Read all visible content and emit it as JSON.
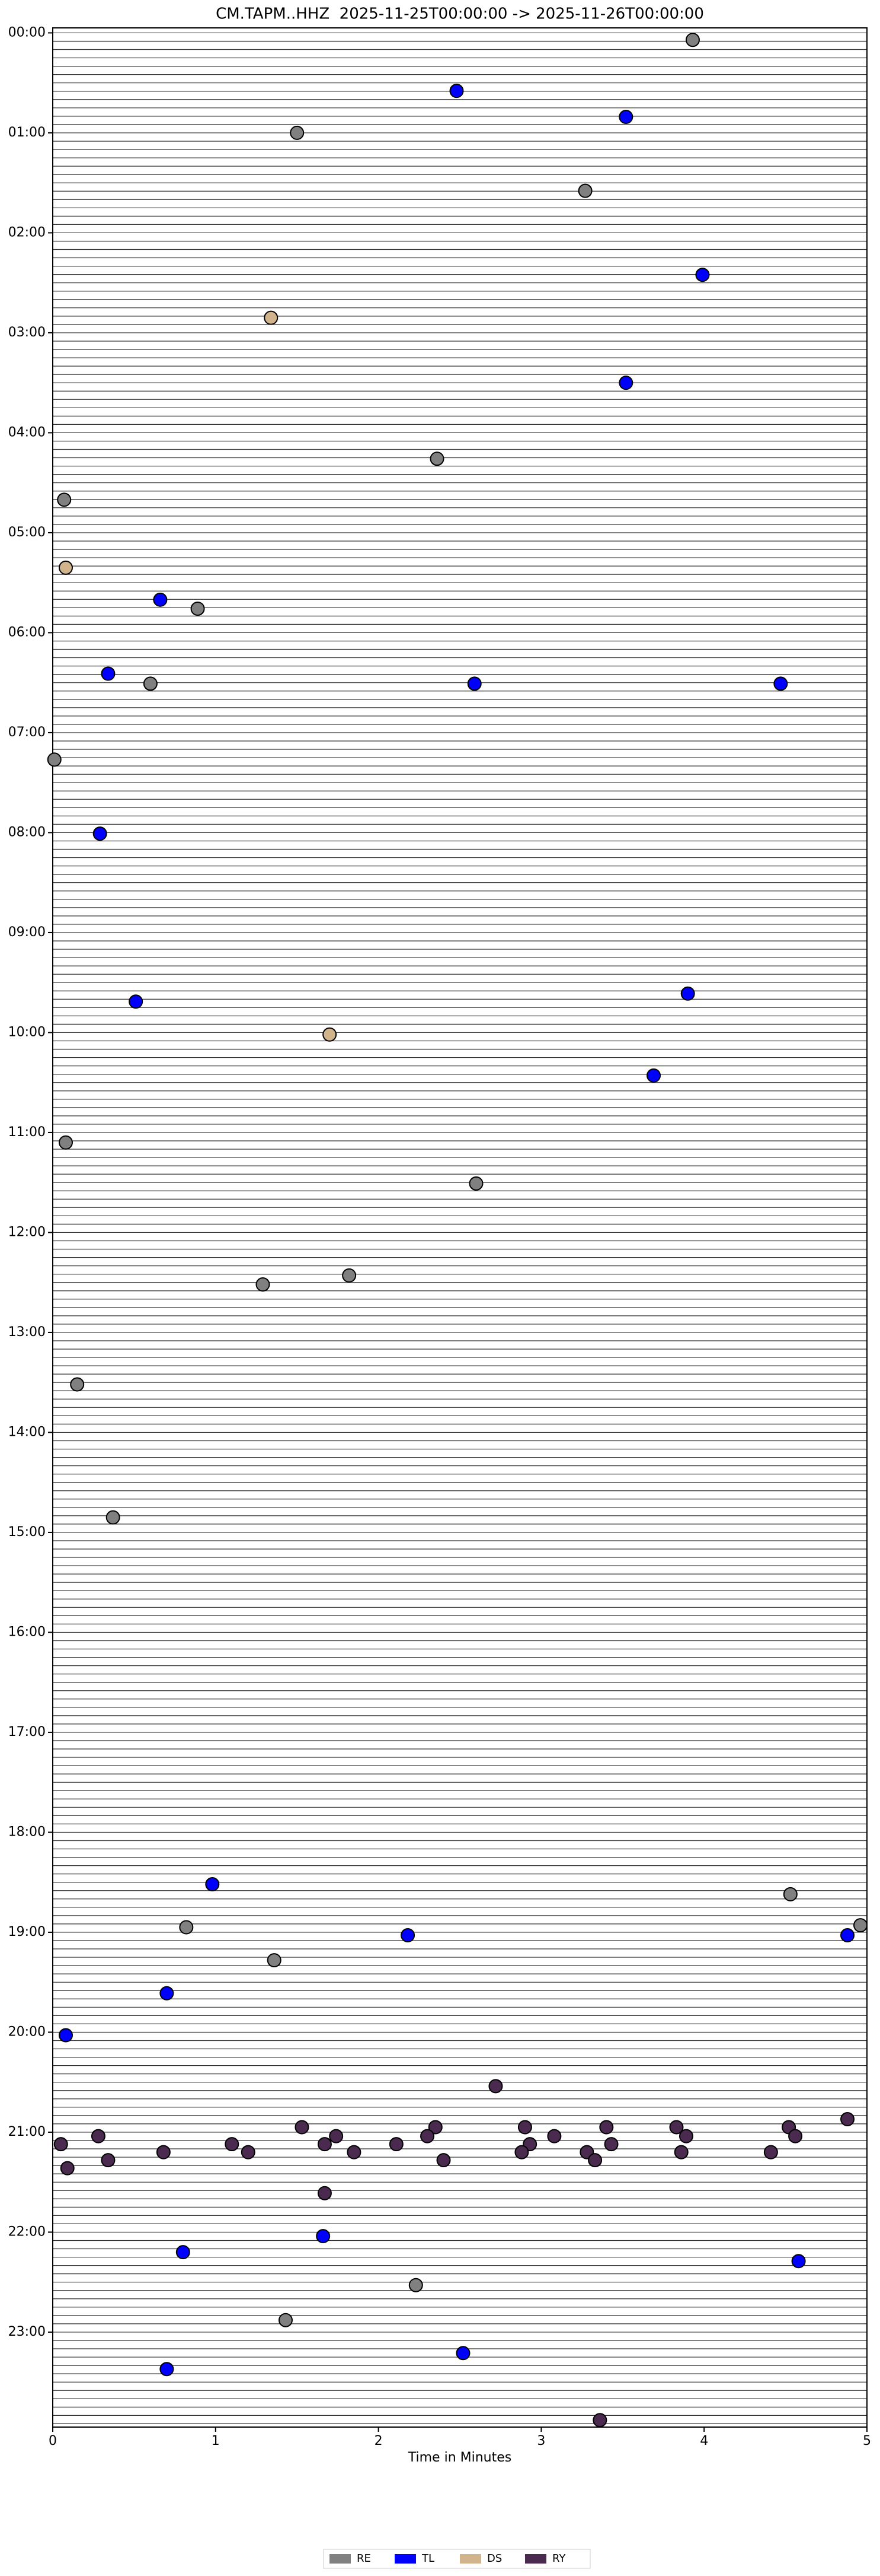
{
  "chart_data": {
    "type": "scatter",
    "title": "CM.TAPM..HHZ  2025-11-25T00:00:00 -> 2025-11-26T00:00:00",
    "x_label": "Time in Minutes",
    "xlim": [
      0,
      5
    ],
    "xticks": [
      0,
      1,
      2,
      3,
      4,
      5
    ],
    "ylim": [
      23.95,
      -0.05
    ],
    "yticks": [
      {
        "value": 0,
        "label": "00:00"
      },
      {
        "value": 1,
        "label": "01:00"
      },
      {
        "value": 2,
        "label": "02:00"
      },
      {
        "value": 3,
        "label": "03:00"
      },
      {
        "value": 4,
        "label": "04:00"
      },
      {
        "value": 5,
        "label": "05:00"
      },
      {
        "value": 6,
        "label": "06:00"
      },
      {
        "value": 7,
        "label": "07:00"
      },
      {
        "value": 8,
        "label": "08:00"
      },
      {
        "value": 9,
        "label": "09:00"
      },
      {
        "value": 10,
        "label": "10:00"
      },
      {
        "value": 11,
        "label": "11:00"
      },
      {
        "value": 12,
        "label": "12:00"
      },
      {
        "value": 13,
        "label": "13:00"
      },
      {
        "value": 14,
        "label": "14:00"
      },
      {
        "value": 15,
        "label": "15:00"
      },
      {
        "value": 16,
        "label": "16:00"
      },
      {
        "value": 17,
        "label": "17:00"
      },
      {
        "value": 18,
        "label": "18:00"
      },
      {
        "value": 19,
        "label": "19:00"
      },
      {
        "value": 20,
        "label": "20:00"
      },
      {
        "value": 21,
        "label": "21:00"
      },
      {
        "value": 22,
        "label": "22:00"
      },
      {
        "value": 23,
        "label": "23:00"
      }
    ],
    "legend_position": "bottom",
    "series": [
      {
        "name": "RE",
        "color": "#808080",
        "x": [
          3.93,
          1.5,
          3.27,
          2.36,
          0.07,
          0.89,
          0.6,
          0.01,
          0.08,
          2.6,
          1.82,
          1.29,
          0.15,
          0.37,
          0.82,
          4.53,
          4.96,
          1.36,
          2.23,
          1.43
        ],
        "y": [
          0.07,
          1.0,
          1.58,
          4.26,
          4.67,
          5.76,
          6.51,
          7.27,
          11.1,
          11.51,
          12.43,
          12.52,
          13.52,
          14.85,
          18.95,
          18.62,
          18.93,
          19.28,
          22.53,
          22.88
        ]
      },
      {
        "name": "TL",
        "color": "#0000ff",
        "x": [
          2.48,
          3.52,
          3.99,
          3.52,
          0.66,
          0.34,
          2.59,
          4.47,
          0.29,
          0.51,
          3.9,
          3.69,
          0.98,
          2.18,
          4.88,
          0.7,
          0.08,
          1.66,
          0.8,
          4.58,
          2.52,
          0.7
        ],
        "y": [
          0.58,
          0.84,
          2.42,
          3.5,
          5.67,
          6.41,
          6.51,
          6.51,
          8.01,
          9.69,
          9.61,
          10.43,
          18.52,
          19.03,
          19.03,
          19.61,
          20.03,
          22.04,
          22.2,
          22.29,
          23.21,
          23.37
        ]
      },
      {
        "name": "DS",
        "color": "#d2b48c",
        "x": [
          1.34,
          0.08,
          1.7
        ],
        "y": [
          2.85,
          5.35,
          10.02
        ]
      },
      {
        "name": "RY",
        "color": "#4b2a4f",
        "x": [
          2.72,
          4.88,
          0.28,
          1.53,
          2.35,
          2.9,
          3.4,
          3.83,
          4.52,
          0.05,
          1.1,
          1.67,
          1.74,
          2.11,
          2.3,
          2.93,
          3.08,
          3.43,
          3.89,
          4.56,
          0.34,
          0.68,
          1.2,
          1.85,
          2.88,
          3.28,
          3.86,
          4.41,
          0.09,
          2.4,
          3.33,
          1.67,
          3.36
        ],
        "y": [
          20.54,
          20.87,
          21.04,
          20.95,
          20.95,
          20.95,
          20.95,
          20.95,
          20.95,
          21.12,
          21.12,
          21.12,
          21.04,
          21.12,
          21.04,
          21.12,
          21.04,
          21.12,
          21.04,
          21.04,
          21.28,
          21.2,
          21.2,
          21.2,
          21.2,
          21.2,
          21.2,
          21.2,
          21.36,
          21.28,
          21.28,
          21.61,
          23.88
        ]
      }
    ]
  }
}
